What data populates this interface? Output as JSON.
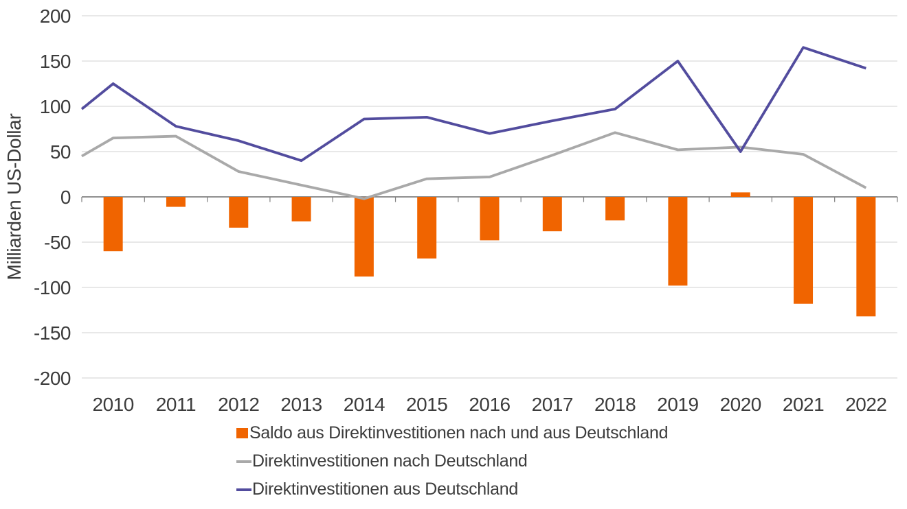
{
  "chart_data": {
    "type": "bar",
    "description": "Combo chart: bars plus two lines",
    "ylabel": "Milliarden US-Dollar",
    "ylim": [
      -200,
      200
    ],
    "yticks": [
      200,
      150,
      100,
      50,
      0,
      -50,
      -100,
      -150,
      -200
    ],
    "grid": "horizontal",
    "legend_position": "bottom-left",
    "categories": [
      "2010",
      "2011",
      "2012",
      "2013",
      "2014",
      "2015",
      "2016",
      "2017",
      "2018",
      "2019",
      "2020",
      "2021",
      "2022"
    ],
    "series": [
      {
        "name": "Saldo aus Direktinvestitionen nach und aus Deutschland",
        "type": "bar",
        "color": "#F06400",
        "values": [
          -60,
          -11,
          -34,
          -27,
          -88,
          -68,
          -48,
          -38,
          -26,
          -98,
          5,
          -118,
          -132
        ]
      },
      {
        "name": "Direktinvestitionen nach Deutschland",
        "type": "line",
        "color": "#A9A9A9",
        "values": [
          65,
          67,
          28,
          13,
          -2,
          20,
          22,
          46,
          71,
          52,
          55,
          47,
          10
        ],
        "value_at_left_edge": 45
      },
      {
        "name": "Direktinvestitionen aus Deutschland",
        "type": "line",
        "color": "#524C9E",
        "values": [
          125,
          78,
          62,
          40,
          86,
          88,
          70,
          84,
          97,
          150,
          50,
          165,
          142
        ],
        "value_at_left_edge": 97
      }
    ],
    "colors": {
      "grid": "#DADADA",
      "axis": "#7F7F7F",
      "text": "#3C3C3C"
    }
  }
}
